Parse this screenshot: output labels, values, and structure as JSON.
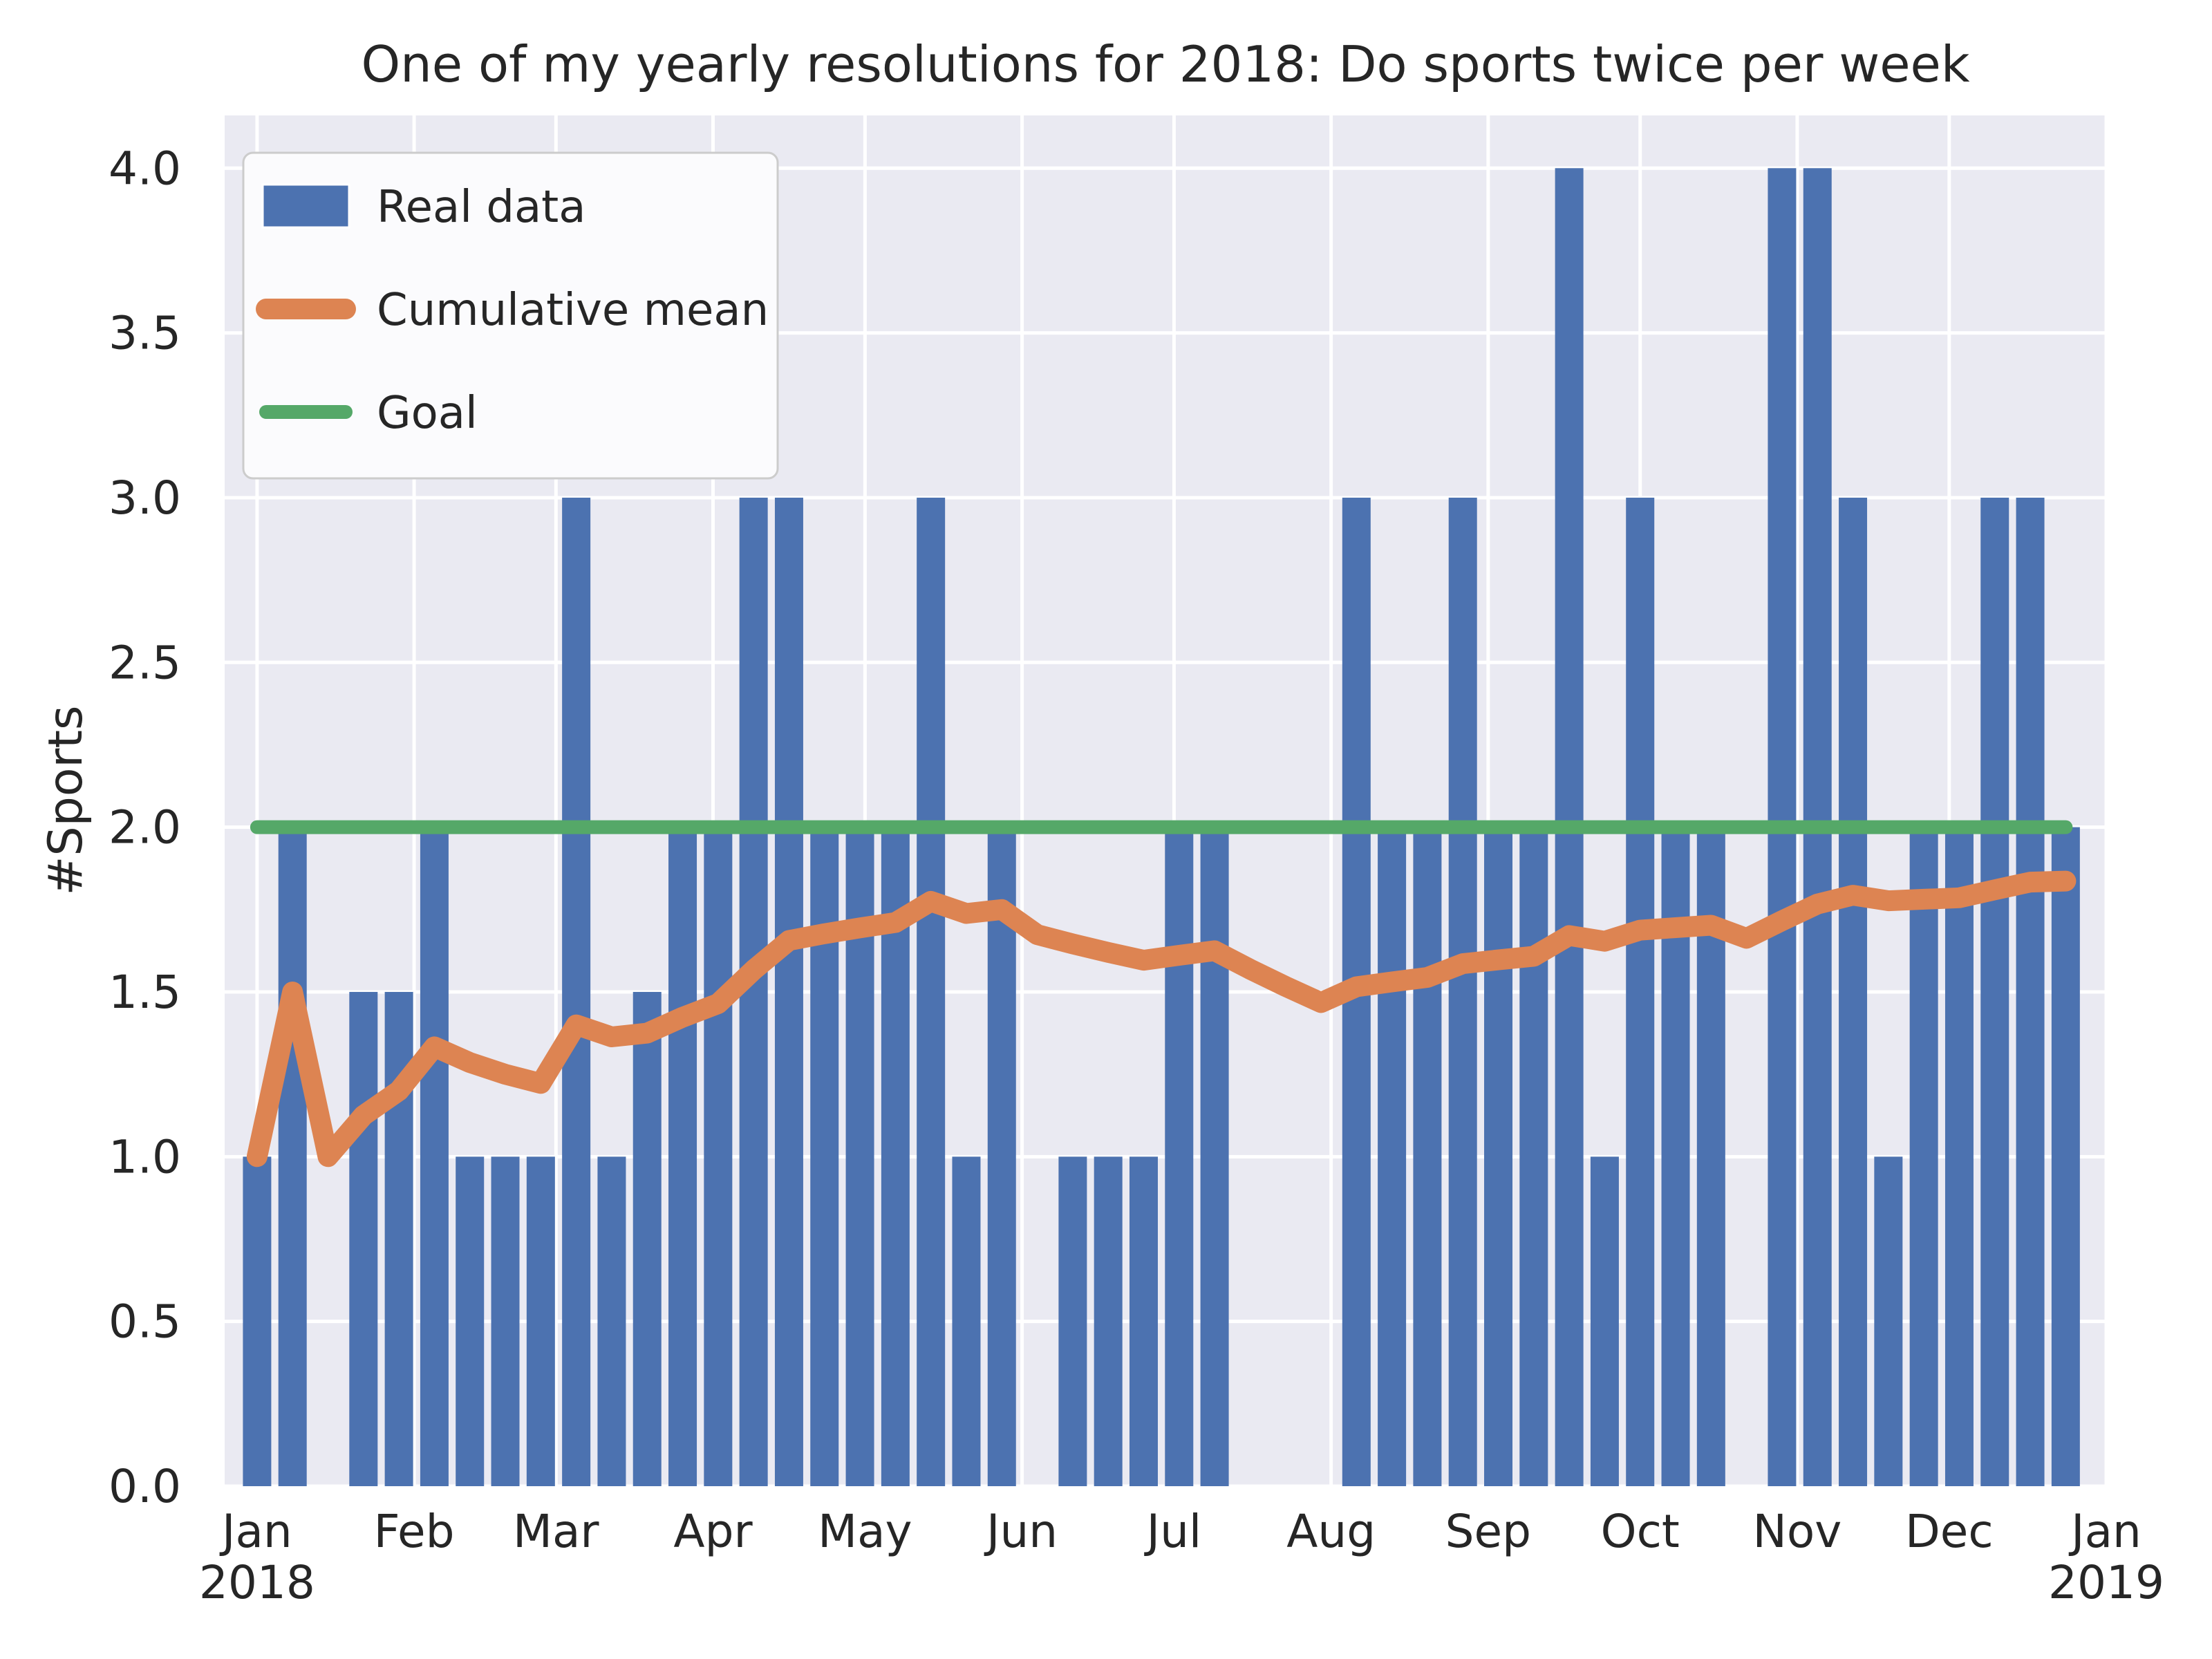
{
  "figure": {
    "title": "One of my yearly resolutions for 2018: Do sports twice per week",
    "ylabel": "#Sports"
  },
  "legend": {
    "items": [
      {
        "label": "Real data",
        "swatch": "patch",
        "color": "#4C72B0"
      },
      {
        "label": "Cumulative mean",
        "swatch": "line",
        "color": "#DD8452"
      },
      {
        "label": "Goal",
        "swatch": "line",
        "color": "#55A868"
      }
    ]
  },
  "chart_data": {
    "type": "bar",
    "title": "One of my yearly resolutions for 2018: Do sports twice per week",
    "xlabel": "",
    "ylabel": "#Sports",
    "x_unit": "weeks starting 2018-01-01, step 7 days",
    "week_day_offsets_step": 7,
    "series": [
      {
        "name": "Real data",
        "type": "bar",
        "color": "#4C72B0",
        "values": [
          1,
          2,
          0,
          1.5,
          1.5,
          2,
          1,
          1,
          1,
          3,
          1,
          1.5,
          2,
          2,
          3,
          3,
          2,
          2,
          2,
          3,
          1,
          2,
          0,
          1,
          1,
          1,
          2,
          2,
          0,
          0,
          0,
          3,
          2,
          2,
          3,
          2,
          2,
          4,
          1,
          3,
          2,
          2,
          0,
          4,
          4,
          3,
          1,
          2,
          2,
          3,
          3,
          2
        ]
      },
      {
        "name": "Cumulative mean",
        "type": "line",
        "color": "#DD8452",
        "values": [
          1.0,
          1.5,
          1.0,
          1.125,
          1.2,
          1.3333,
          1.2857,
          1.25,
          1.2222,
          1.4,
          1.3636,
          1.375,
          1.4231,
          1.4643,
          1.5667,
          1.6563,
          1.6765,
          1.6944,
          1.7105,
          1.775,
          1.7381,
          1.75,
          1.6739,
          1.6458,
          1.62,
          1.5962,
          1.6111,
          1.625,
          1.569,
          1.5167,
          1.4677,
          1.5156,
          1.5303,
          1.5441,
          1.5857,
          1.5972,
          1.6081,
          1.6711,
          1.6538,
          1.6875,
          1.6951,
          1.7024,
          1.6628,
          1.7159,
          1.7667,
          1.7935,
          1.7766,
          1.7813,
          1.7857,
          1.81,
          1.8333,
          1.8365
        ]
      },
      {
        "name": "Goal",
        "type": "hline",
        "color": "#55A868",
        "value": 2.0
      }
    ],
    "x_ticks": [
      {
        "label": "Jan",
        "sublabel": "2018",
        "day": 0
      },
      {
        "label": "Feb",
        "sublabel": "",
        "day": 31
      },
      {
        "label": "Mar",
        "sublabel": "",
        "day": 59
      },
      {
        "label": "Apr",
        "sublabel": "",
        "day": 90
      },
      {
        "label": "May",
        "sublabel": "",
        "day": 120
      },
      {
        "label": "Jun",
        "sublabel": "",
        "day": 151
      },
      {
        "label": "Jul",
        "sublabel": "",
        "day": 181
      },
      {
        "label": "Aug",
        "sublabel": "",
        "day": 212
      },
      {
        "label": "Sep",
        "sublabel": "",
        "day": 243
      },
      {
        "label": "Oct",
        "sublabel": "",
        "day": 273
      },
      {
        "label": "Nov",
        "sublabel": "",
        "day": 304
      },
      {
        "label": "Dec",
        "sublabel": "",
        "day": 334
      },
      {
        "label": "Jan",
        "sublabel": "2019",
        "day": 365
      }
    ],
    "y_ticks": [
      {
        "label": "0.0",
        "value": 0.0
      },
      {
        "label": "0.5",
        "value": 0.5
      },
      {
        "label": "1.0",
        "value": 1.0
      },
      {
        "label": "1.5",
        "value": 1.5
      },
      {
        "label": "2.0",
        "value": 2.0
      },
      {
        "label": "2.5",
        "value": 2.5
      },
      {
        "label": "3.0",
        "value": 3.0
      },
      {
        "label": "3.5",
        "value": 3.5
      },
      {
        "label": "4.0",
        "value": 4.0
      }
    ],
    "ylim": [
      0,
      4.16
    ],
    "xlim_days": [
      -6.4,
      365
    ],
    "grid": true,
    "legend_position": "upper left",
    "colors": {
      "bar": "#4C72B0",
      "mean_line": "#DD8452",
      "goal_line": "#55A868",
      "axes_background": "#EAEAF2",
      "gridline": "#FFFFFF",
      "text": "#262626",
      "legend_background": "#FBFBFD",
      "legend_border": "#CCCCCC"
    }
  }
}
